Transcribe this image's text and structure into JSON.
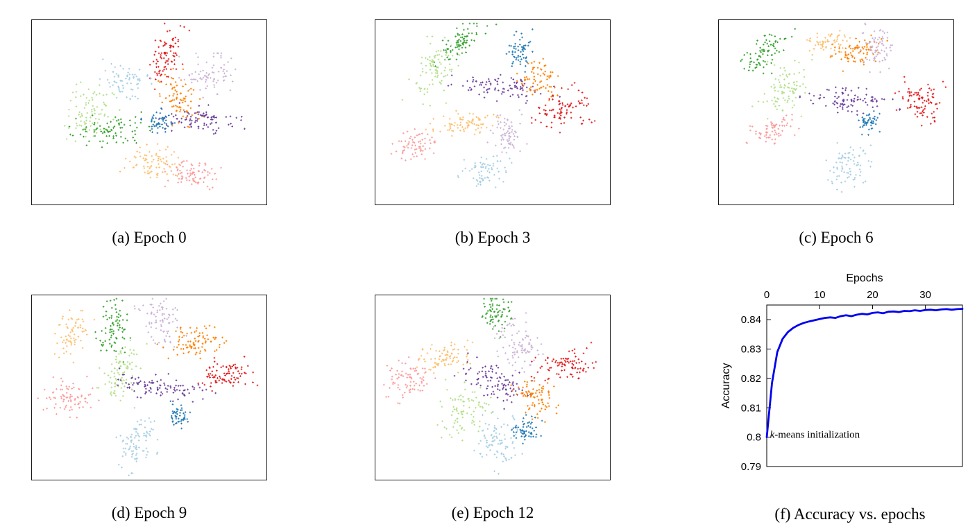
{
  "figure": {
    "captions": [
      "(a) Epoch 0",
      "(b) Epoch 3",
      "(c) Epoch 6",
      "(d) Epoch 9",
      "(e) Epoch 12",
      "(f) Accuracy vs. epochs"
    ]
  },
  "palette": {
    "lightblue": "#a6cee3",
    "blue": "#1f78b4",
    "lightgreen": "#b2df8a",
    "green": "#33a02c",
    "pink": "#fb9a99",
    "red": "#e31a1c",
    "tan": "#fdbf6f",
    "orange": "#ff7f00",
    "lavender": "#cab2d6",
    "purple": "#6a3d9a",
    "line_blue": "#0000ee"
  },
  "chart_data": [
    {
      "type": "scatter",
      "title": "Epoch 0",
      "clusters": [
        {
          "c": "red",
          "x": 0.57,
          "y": 0.2,
          "rx": 0.035,
          "ry": 0.075,
          "rot": 20,
          "n": 90
        },
        {
          "c": "lavender",
          "x": 0.76,
          "y": 0.3,
          "rx": 0.055,
          "ry": 0.05,
          "rot": 0,
          "n": 80
        },
        {
          "c": "lightblue",
          "x": 0.4,
          "y": 0.32,
          "rx": 0.05,
          "ry": 0.045,
          "rot": 0,
          "n": 70
        },
        {
          "c": "lightgreen",
          "x": 0.25,
          "y": 0.5,
          "rx": 0.055,
          "ry": 0.075,
          "rot": 10,
          "n": 90
        },
        {
          "c": "green",
          "x": 0.34,
          "y": 0.6,
          "rx": 0.075,
          "ry": 0.04,
          "rot": -10,
          "n": 80
        },
        {
          "c": "orange",
          "x": 0.63,
          "y": 0.43,
          "rx": 0.035,
          "ry": 0.07,
          "rot": -15,
          "n": 80
        },
        {
          "c": "purple",
          "x": 0.7,
          "y": 0.54,
          "rx": 0.09,
          "ry": 0.035,
          "rot": 5,
          "n": 90
        },
        {
          "c": "blue",
          "x": 0.55,
          "y": 0.55,
          "rx": 0.035,
          "ry": 0.03,
          "rot": 0,
          "n": 50
        },
        {
          "c": "tan",
          "x": 0.52,
          "y": 0.78,
          "rx": 0.06,
          "ry": 0.045,
          "rot": 0,
          "n": 80
        },
        {
          "c": "pink",
          "x": 0.7,
          "y": 0.84,
          "rx": 0.055,
          "ry": 0.04,
          "rot": 0,
          "n": 80
        }
      ]
    },
    {
      "type": "scatter",
      "title": "Epoch 3",
      "clusters": [
        {
          "c": "green",
          "x": 0.36,
          "y": 0.12,
          "rx": 0.03,
          "ry": 0.07,
          "rot": 35,
          "n": 80
        },
        {
          "c": "lightgreen",
          "x": 0.25,
          "y": 0.27,
          "rx": 0.04,
          "ry": 0.08,
          "rot": 15,
          "n": 90
        },
        {
          "c": "blue",
          "x": 0.61,
          "y": 0.17,
          "rx": 0.025,
          "ry": 0.05,
          "rot": 0,
          "n": 60
        },
        {
          "c": "purple",
          "x": 0.55,
          "y": 0.37,
          "rx": 0.1,
          "ry": 0.03,
          "rot": 5,
          "n": 90
        },
        {
          "c": "orange",
          "x": 0.7,
          "y": 0.33,
          "rx": 0.04,
          "ry": 0.05,
          "rot": 0,
          "n": 70
        },
        {
          "c": "red",
          "x": 0.79,
          "y": 0.49,
          "rx": 0.065,
          "ry": 0.05,
          "rot": -20,
          "n": 90
        },
        {
          "c": "tan",
          "x": 0.38,
          "y": 0.56,
          "rx": 0.07,
          "ry": 0.03,
          "rot": -8,
          "n": 80
        },
        {
          "c": "lavender",
          "x": 0.57,
          "y": 0.62,
          "rx": 0.04,
          "ry": 0.055,
          "rot": 0,
          "n": 70
        },
        {
          "c": "pink",
          "x": 0.17,
          "y": 0.68,
          "rx": 0.05,
          "ry": 0.035,
          "rot": -30,
          "n": 70
        },
        {
          "c": "lightblue",
          "x": 0.47,
          "y": 0.82,
          "rx": 0.05,
          "ry": 0.04,
          "rot": -20,
          "n": 70
        }
      ]
    },
    {
      "type": "scatter",
      "title": "Epoch 6",
      "clusters": [
        {
          "c": "green",
          "x": 0.2,
          "y": 0.17,
          "rx": 0.035,
          "ry": 0.07,
          "rot": 30,
          "n": 80
        },
        {
          "c": "tan",
          "x": 0.46,
          "y": 0.12,
          "rx": 0.05,
          "ry": 0.03,
          "rot": -10,
          "n": 60
        },
        {
          "c": "orange",
          "x": 0.6,
          "y": 0.17,
          "rx": 0.055,
          "ry": 0.035,
          "rot": -25,
          "n": 80
        },
        {
          "c": "lavender",
          "x": 0.68,
          "y": 0.15,
          "rx": 0.035,
          "ry": 0.055,
          "rot": 0,
          "n": 70
        },
        {
          "c": "lightgreen",
          "x": 0.28,
          "y": 0.37,
          "rx": 0.045,
          "ry": 0.075,
          "rot": 15,
          "n": 90
        },
        {
          "c": "purple",
          "x": 0.56,
          "y": 0.44,
          "rx": 0.09,
          "ry": 0.032,
          "rot": 8,
          "n": 90
        },
        {
          "c": "blue",
          "x": 0.64,
          "y": 0.55,
          "rx": 0.025,
          "ry": 0.035,
          "rot": 0,
          "n": 50
        },
        {
          "c": "red",
          "x": 0.86,
          "y": 0.44,
          "rx": 0.045,
          "ry": 0.055,
          "rot": 0,
          "n": 90
        },
        {
          "c": "pink",
          "x": 0.22,
          "y": 0.6,
          "rx": 0.05,
          "ry": 0.035,
          "rot": -25,
          "n": 70
        },
        {
          "c": "lightblue",
          "x": 0.55,
          "y": 0.79,
          "rx": 0.04,
          "ry": 0.06,
          "rot": 10,
          "n": 80
        }
      ]
    },
    {
      "type": "scatter",
      "title": "Epoch 9",
      "clusters": [
        {
          "c": "tan",
          "x": 0.17,
          "y": 0.22,
          "rx": 0.03,
          "ry": 0.07,
          "rot": 20,
          "n": 70
        },
        {
          "c": "green",
          "x": 0.35,
          "y": 0.17,
          "rx": 0.032,
          "ry": 0.08,
          "rot": 5,
          "n": 80
        },
        {
          "c": "lavender",
          "x": 0.55,
          "y": 0.15,
          "rx": 0.04,
          "ry": 0.075,
          "rot": -10,
          "n": 80
        },
        {
          "c": "orange",
          "x": 0.7,
          "y": 0.25,
          "rx": 0.065,
          "ry": 0.04,
          "rot": -25,
          "n": 90
        },
        {
          "c": "lightgreen",
          "x": 0.38,
          "y": 0.42,
          "rx": 0.04,
          "ry": 0.075,
          "rot": 15,
          "n": 90
        },
        {
          "c": "purple",
          "x": 0.56,
          "y": 0.5,
          "rx": 0.1,
          "ry": 0.032,
          "rot": 12,
          "n": 100
        },
        {
          "c": "red",
          "x": 0.81,
          "y": 0.43,
          "rx": 0.055,
          "ry": 0.04,
          "rot": -15,
          "n": 90
        },
        {
          "c": "pink",
          "x": 0.15,
          "y": 0.55,
          "rx": 0.05,
          "ry": 0.05,
          "rot": -20,
          "n": 80
        },
        {
          "c": "blue",
          "x": 0.63,
          "y": 0.65,
          "rx": 0.022,
          "ry": 0.035,
          "rot": 0,
          "n": 50
        },
        {
          "c": "lightblue",
          "x": 0.45,
          "y": 0.8,
          "rx": 0.04,
          "ry": 0.075,
          "rot": 15,
          "n": 90
        }
      ]
    },
    {
      "type": "scatter",
      "title": "Epoch 12",
      "clusters": [
        {
          "c": "green",
          "x": 0.52,
          "y": 0.1,
          "rx": 0.03,
          "ry": 0.06,
          "rot": 0,
          "n": 70
        },
        {
          "c": "lavender",
          "x": 0.61,
          "y": 0.26,
          "rx": 0.04,
          "ry": 0.075,
          "rot": -8,
          "n": 90
        },
        {
          "c": "tan",
          "x": 0.3,
          "y": 0.34,
          "rx": 0.055,
          "ry": 0.038,
          "rot": -15,
          "n": 80
        },
        {
          "c": "pink",
          "x": 0.14,
          "y": 0.46,
          "rx": 0.045,
          "ry": 0.055,
          "rot": 15,
          "n": 80
        },
        {
          "c": "purple",
          "x": 0.52,
          "y": 0.47,
          "rx": 0.075,
          "ry": 0.05,
          "rot": 25,
          "n": 100
        },
        {
          "c": "red",
          "x": 0.8,
          "y": 0.38,
          "rx": 0.06,
          "ry": 0.04,
          "rot": -12,
          "n": 90
        },
        {
          "c": "orange",
          "x": 0.68,
          "y": 0.55,
          "rx": 0.04,
          "ry": 0.06,
          "rot": -20,
          "n": 80
        },
        {
          "c": "lightgreen",
          "x": 0.38,
          "y": 0.63,
          "rx": 0.05,
          "ry": 0.065,
          "rot": 10,
          "n": 90
        },
        {
          "c": "lightblue",
          "x": 0.52,
          "y": 0.8,
          "rx": 0.045,
          "ry": 0.07,
          "rot": 0,
          "n": 90
        },
        {
          "c": "blue",
          "x": 0.64,
          "y": 0.73,
          "rx": 0.03,
          "ry": 0.035,
          "rot": 0,
          "n": 60
        }
      ]
    },
    {
      "type": "line",
      "title": "",
      "xlabel": "Epochs",
      "ylabel": "Accuracy",
      "xlim": [
        0,
        37
      ],
      "ylim": [
        0.79,
        0.845
      ],
      "xticks": [
        0,
        10,
        20,
        30
      ],
      "xtick_labels": [
        "0",
        "10",
        "20",
        "30"
      ],
      "yticks": [
        0.79,
        0.8,
        0.81,
        0.82,
        0.83,
        0.84
      ],
      "ytick_labels": [
        "0.79",
        "0.8",
        "0.81",
        "0.82",
        "0.83",
        "0.84"
      ],
      "x": [
        0,
        1,
        2,
        3,
        4,
        5,
        6,
        7,
        8,
        9,
        10,
        11,
        12,
        13,
        14,
        15,
        16,
        17,
        18,
        19,
        20,
        21,
        22,
        23,
        24,
        25,
        26,
        27,
        28,
        29,
        30,
        31,
        32,
        33,
        34,
        35,
        36,
        37
      ],
      "y": [
        0.8,
        0.8185,
        0.829,
        0.8335,
        0.8358,
        0.8372,
        0.8382,
        0.8389,
        0.8394,
        0.8398,
        0.8402,
        0.8406,
        0.8408,
        0.8406,
        0.8412,
        0.8415,
        0.8412,
        0.8417,
        0.842,
        0.8418,
        0.8423,
        0.8425,
        0.8422,
        0.8427,
        0.8428,
        0.8426,
        0.843,
        0.8429,
        0.8432,
        0.843,
        0.8433,
        0.8434,
        0.8432,
        0.8435,
        0.8436,
        0.8434,
        0.8436,
        0.8437
      ],
      "line_color": "#0000ee",
      "annotation": {
        "prefix": "k",
        "rest": "-means initialization",
        "x": 0.6,
        "y": 0.7998
      }
    }
  ]
}
